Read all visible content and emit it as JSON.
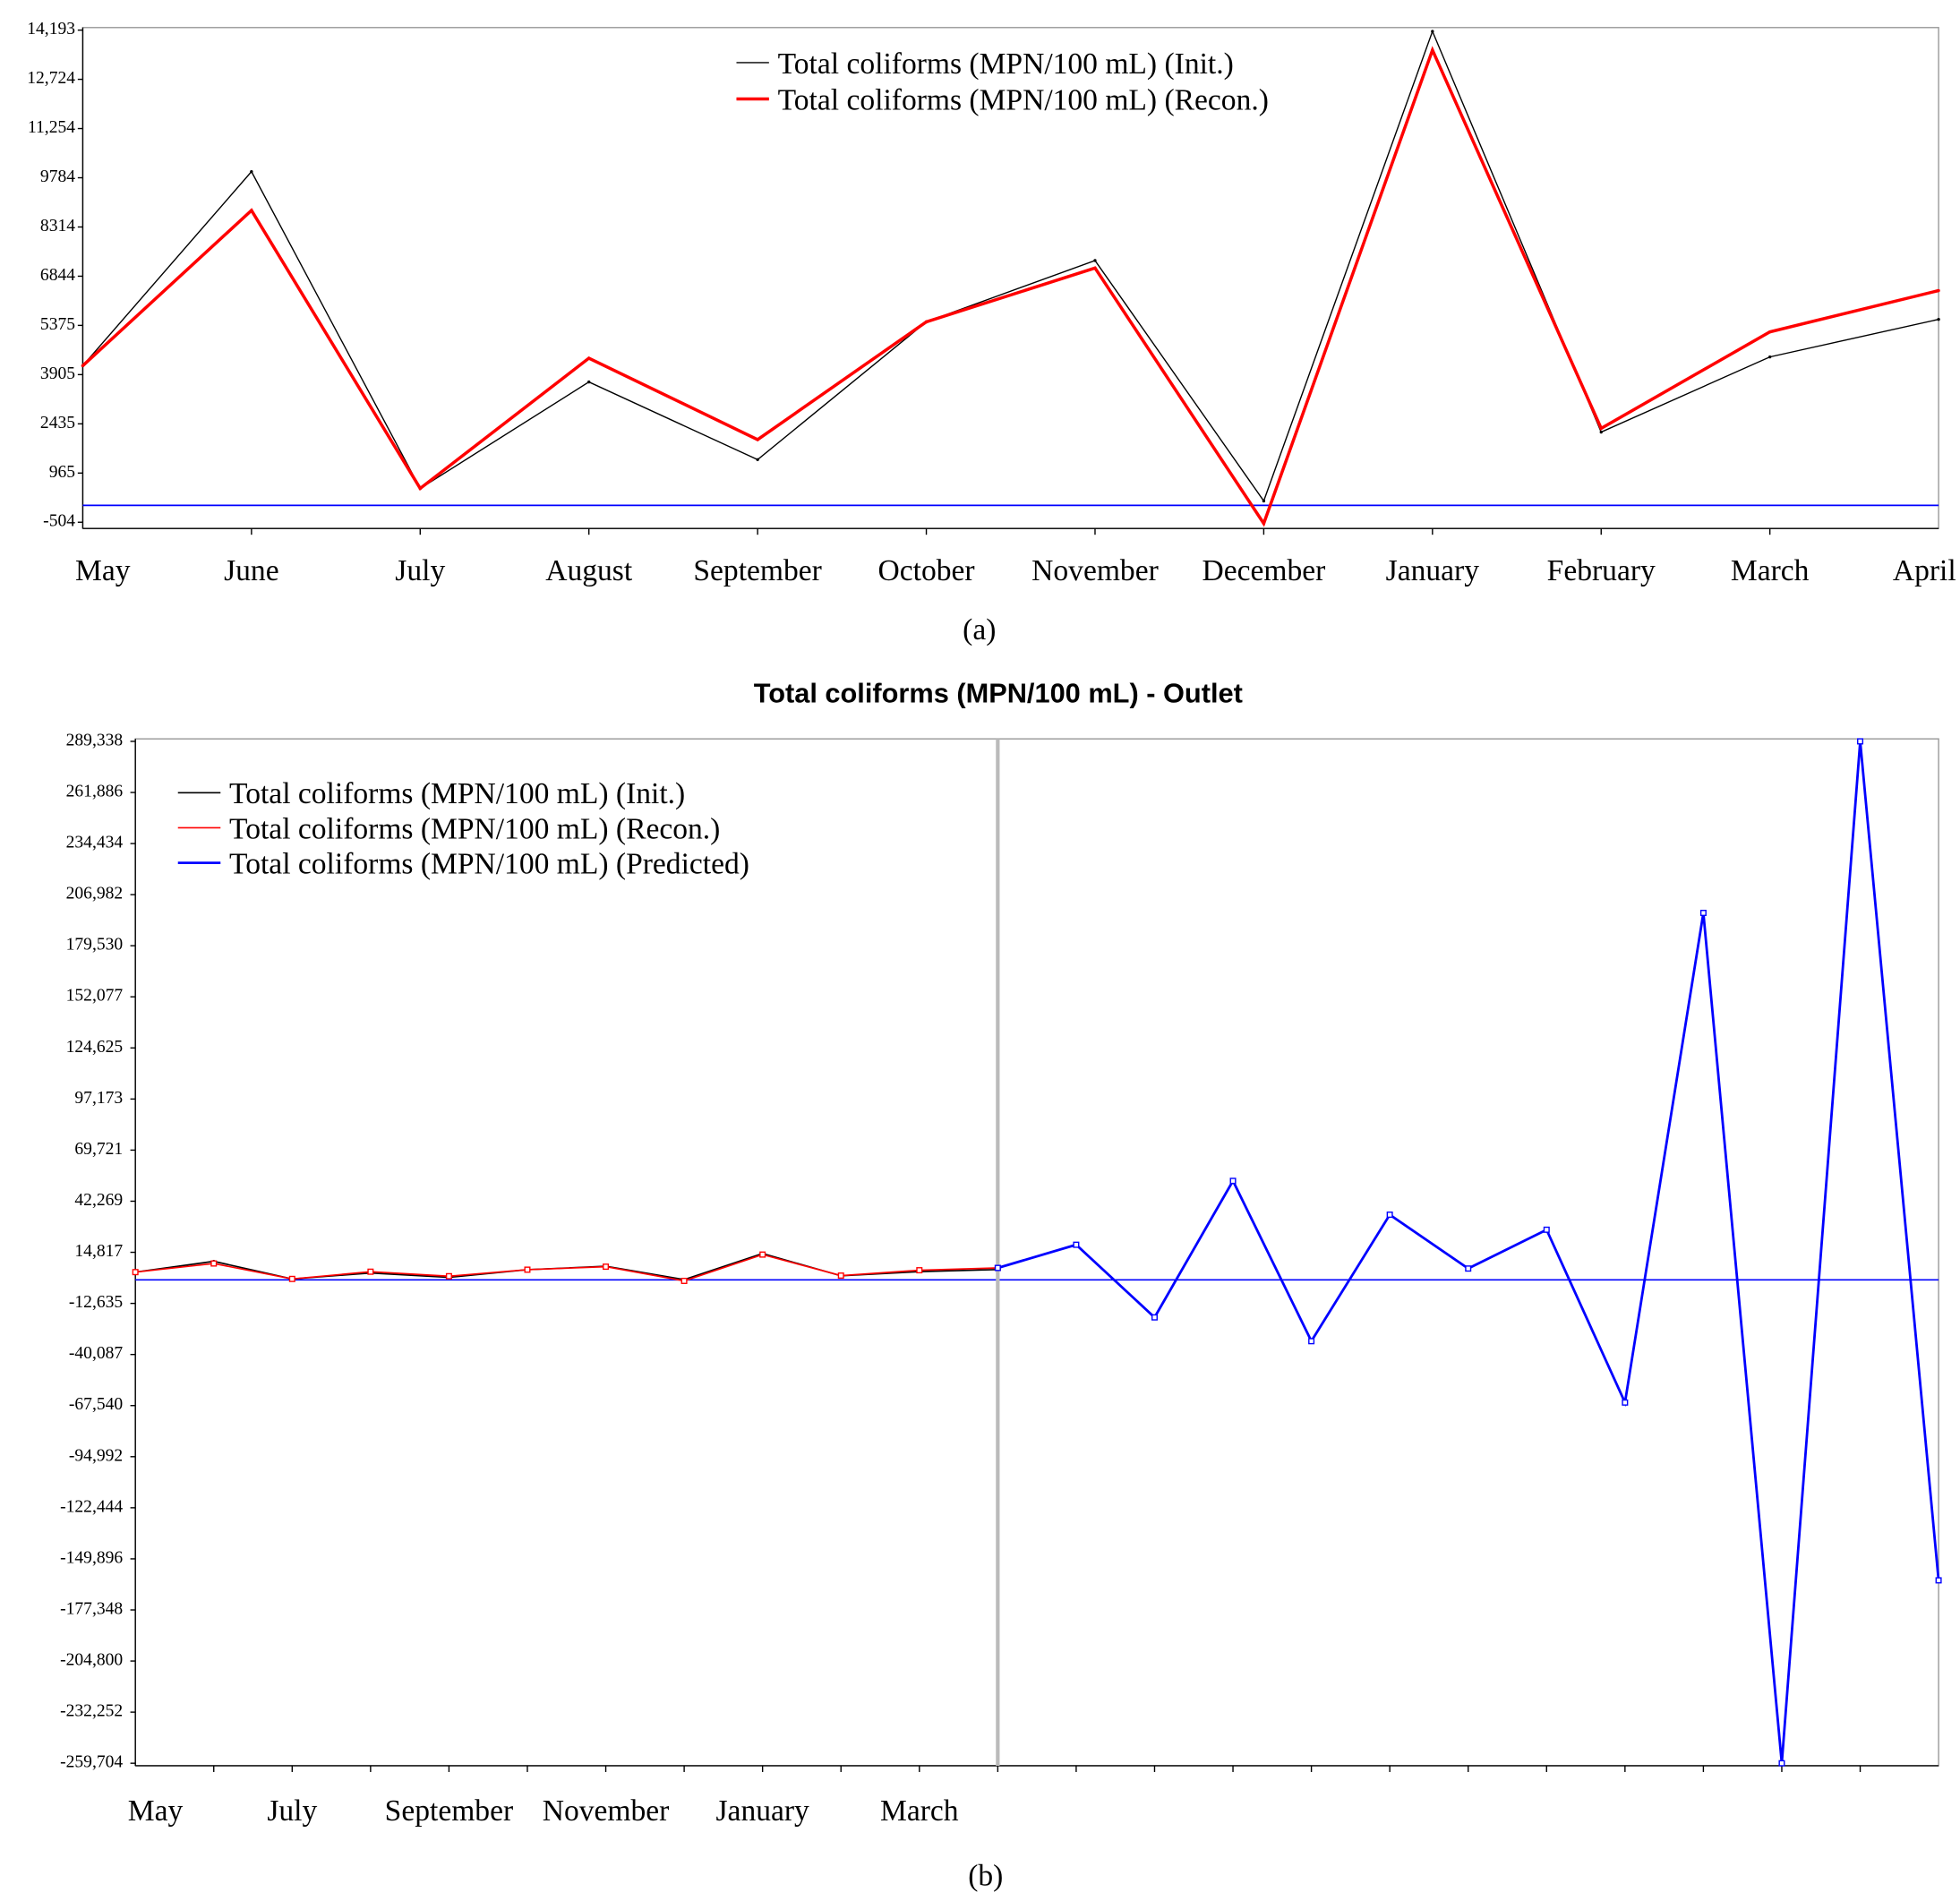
{
  "chart_data": [
    {
      "type": "line",
      "caption": "(a)",
      "categories": [
        "May",
        "June",
        "July",
        "August",
        "September",
        "October",
        "November",
        "December",
        "January",
        "February",
        "March",
        "April"
      ],
      "series": [
        {
          "name": "Total coliforms (MPN/100 mL) (Init.)",
          "color": "#000000",
          "values": [
            4171,
            9968,
            506,
            3685,
            1366,
            5480,
            7313,
            132,
            14157,
            2189,
            4433,
            5555
          ]
        },
        {
          "name": "Total coliforms (MPN/100 mL) (Recon.)",
          "color": "#ff0000",
          "values": [
            4171,
            8809,
            506,
            4395,
            1964,
            5480,
            7088,
            -541,
            13596,
            2301,
            5181,
            6415
          ]
        }
      ],
      "ylim": [
        -690,
        14270
      ],
      "yticks": [
        -504,
        965,
        2435,
        3905,
        5375,
        6844,
        8314,
        9784,
        {
          "value": 11254,
          "label": "11,254"
        },
        {
          "value": 12724,
          "label": "12,724"
        },
        {
          "value": 14193,
          "label": "14,193"
        }
      ],
      "hline": {
        "value": 0,
        "color": "#0000ff"
      }
    },
    {
      "type": "line",
      "title": "Total coliforms (MPN/100 mL) - Outlet",
      "caption": "(b)",
      "categories": [
        "May",
        null,
        "July",
        null,
        "September",
        null,
        "November",
        null,
        "January",
        null,
        "March",
        null,
        null,
        null,
        null,
        null,
        null,
        null,
        null,
        null,
        null,
        null,
        null,
        null
      ],
      "series": [
        {
          "name": "Total coliforms (MPN/100 mL) (Init.)",
          "color": "#000000",
          "values": [
            4171,
            9968,
            506,
            3685,
            1366,
            5480,
            7313,
            132,
            14157,
            2189,
            4433,
            5555,
            null,
            null,
            null,
            null,
            null,
            null,
            null,
            null,
            null,
            null,
            null,
            null
          ]
        },
        {
          "name": "Total coliforms (MPN/100 mL) (Recon.)",
          "color": "#ff0000",
          "values": [
            4171,
            8809,
            506,
            4395,
            1964,
            5480,
            7088,
            -541,
            13596,
            2301,
            5181,
            6415,
            null,
            null,
            null,
            null,
            null,
            null,
            null,
            null,
            null,
            null,
            null,
            null
          ]
        },
        {
          "name": "Total coliforms (MPN/100 mL) (Predicted)",
          "color": "#0000ff",
          "values": [
            null,
            null,
            null,
            null,
            null,
            null,
            null,
            null,
            null,
            null,
            null,
            6415,
            18872,
            -20150,
            53185,
            -32933,
            35020,
            6090,
            26946,
            -65900,
            197164,
            -259700,
            289338,
            -161438
          ]
        }
      ],
      "ylim": [
        -261050,
        290680
      ],
      "yticks": [
        {
          "value": -259704,
          "label": "-259,704"
        },
        {
          "value": -232252,
          "label": "-232,252"
        },
        {
          "value": -204800,
          "label": "-204,800"
        },
        {
          "value": -177348,
          "label": "-177,348"
        },
        {
          "value": -149896,
          "label": "-149,896"
        },
        {
          "value": -122444,
          "label": "-122,444"
        },
        {
          "value": -94992,
          "label": "-94,992"
        },
        {
          "value": -67540,
          "label": "-67,540"
        },
        {
          "value": -40087,
          "label": "-40,087"
        },
        {
          "value": -12635,
          "label": "-12,635"
        },
        {
          "value": 14817,
          "label": "14,817"
        },
        {
          "value": 42269,
          "label": "42,269"
        },
        {
          "value": 69721,
          "label": "69,721"
        },
        {
          "value": 97173,
          "label": "97,173"
        },
        {
          "value": 124625,
          "label": "124,625"
        },
        {
          "value": 152077,
          "label": "152,077"
        },
        {
          "value": 179530,
          "label": "179,530"
        },
        {
          "value": 206982,
          "label": "206,982"
        },
        {
          "value": 234434,
          "label": "234,434"
        },
        {
          "value": 261886,
          "label": "261,886"
        },
        {
          "value": 289338,
          "label": "289,338"
        }
      ],
      "hline": {
        "value": 0,
        "color": "#0000ff"
      }
    }
  ]
}
